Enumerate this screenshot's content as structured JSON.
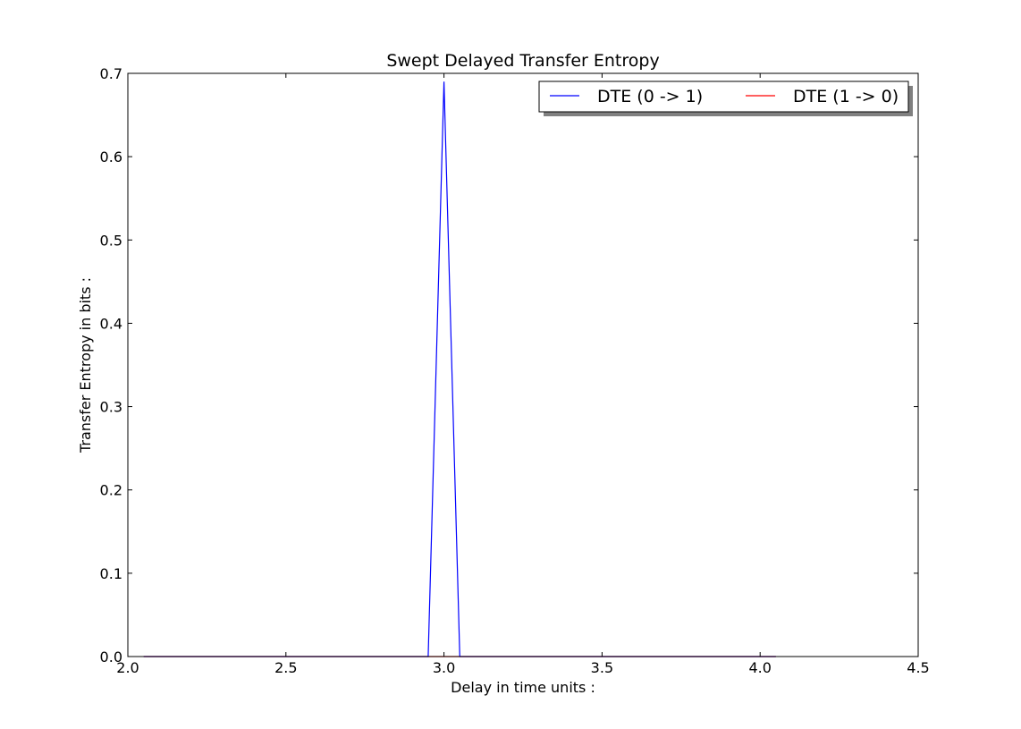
{
  "chart_data": {
    "type": "line",
    "title": "Swept Delayed Transfer Entropy",
    "xlabel": "Delay in time units :",
    "ylabel": "Transfer Entropy in bits :",
    "xlim": [
      2.0,
      4.5
    ],
    "ylim": [
      0.0,
      0.7
    ],
    "xticks": [
      2.0,
      2.5,
      3.0,
      3.5,
      4.0,
      4.5
    ],
    "xtick_labels": [
      "2.0",
      "2.5",
      "3.0",
      "3.5",
      "4.0",
      "4.5"
    ],
    "yticks": [
      0.0,
      0.1,
      0.2,
      0.3,
      0.4,
      0.5,
      0.6,
      0.7
    ],
    "ytick_labels": [
      "0.0",
      "0.1",
      "0.2",
      "0.3",
      "0.4",
      "0.5",
      "0.6",
      "0.7"
    ],
    "grid": false,
    "legend_position": "top-right",
    "series": [
      {
        "name": "DTE (0 -> 1)",
        "color": "#0000ff",
        "x": [
          2.05,
          2.95,
          3.0,
          3.05,
          4.05
        ],
        "y": [
          0.0,
          0.0,
          0.69,
          0.0,
          0.0
        ]
      },
      {
        "name": "DTE (1 -> 0)",
        "color": "#ff0000",
        "x": [
          2.05,
          2.95,
          3.0,
          3.05,
          4.05
        ],
        "y": [
          0.0,
          0.0,
          0.0,
          0.0,
          0.0
        ]
      }
    ]
  }
}
